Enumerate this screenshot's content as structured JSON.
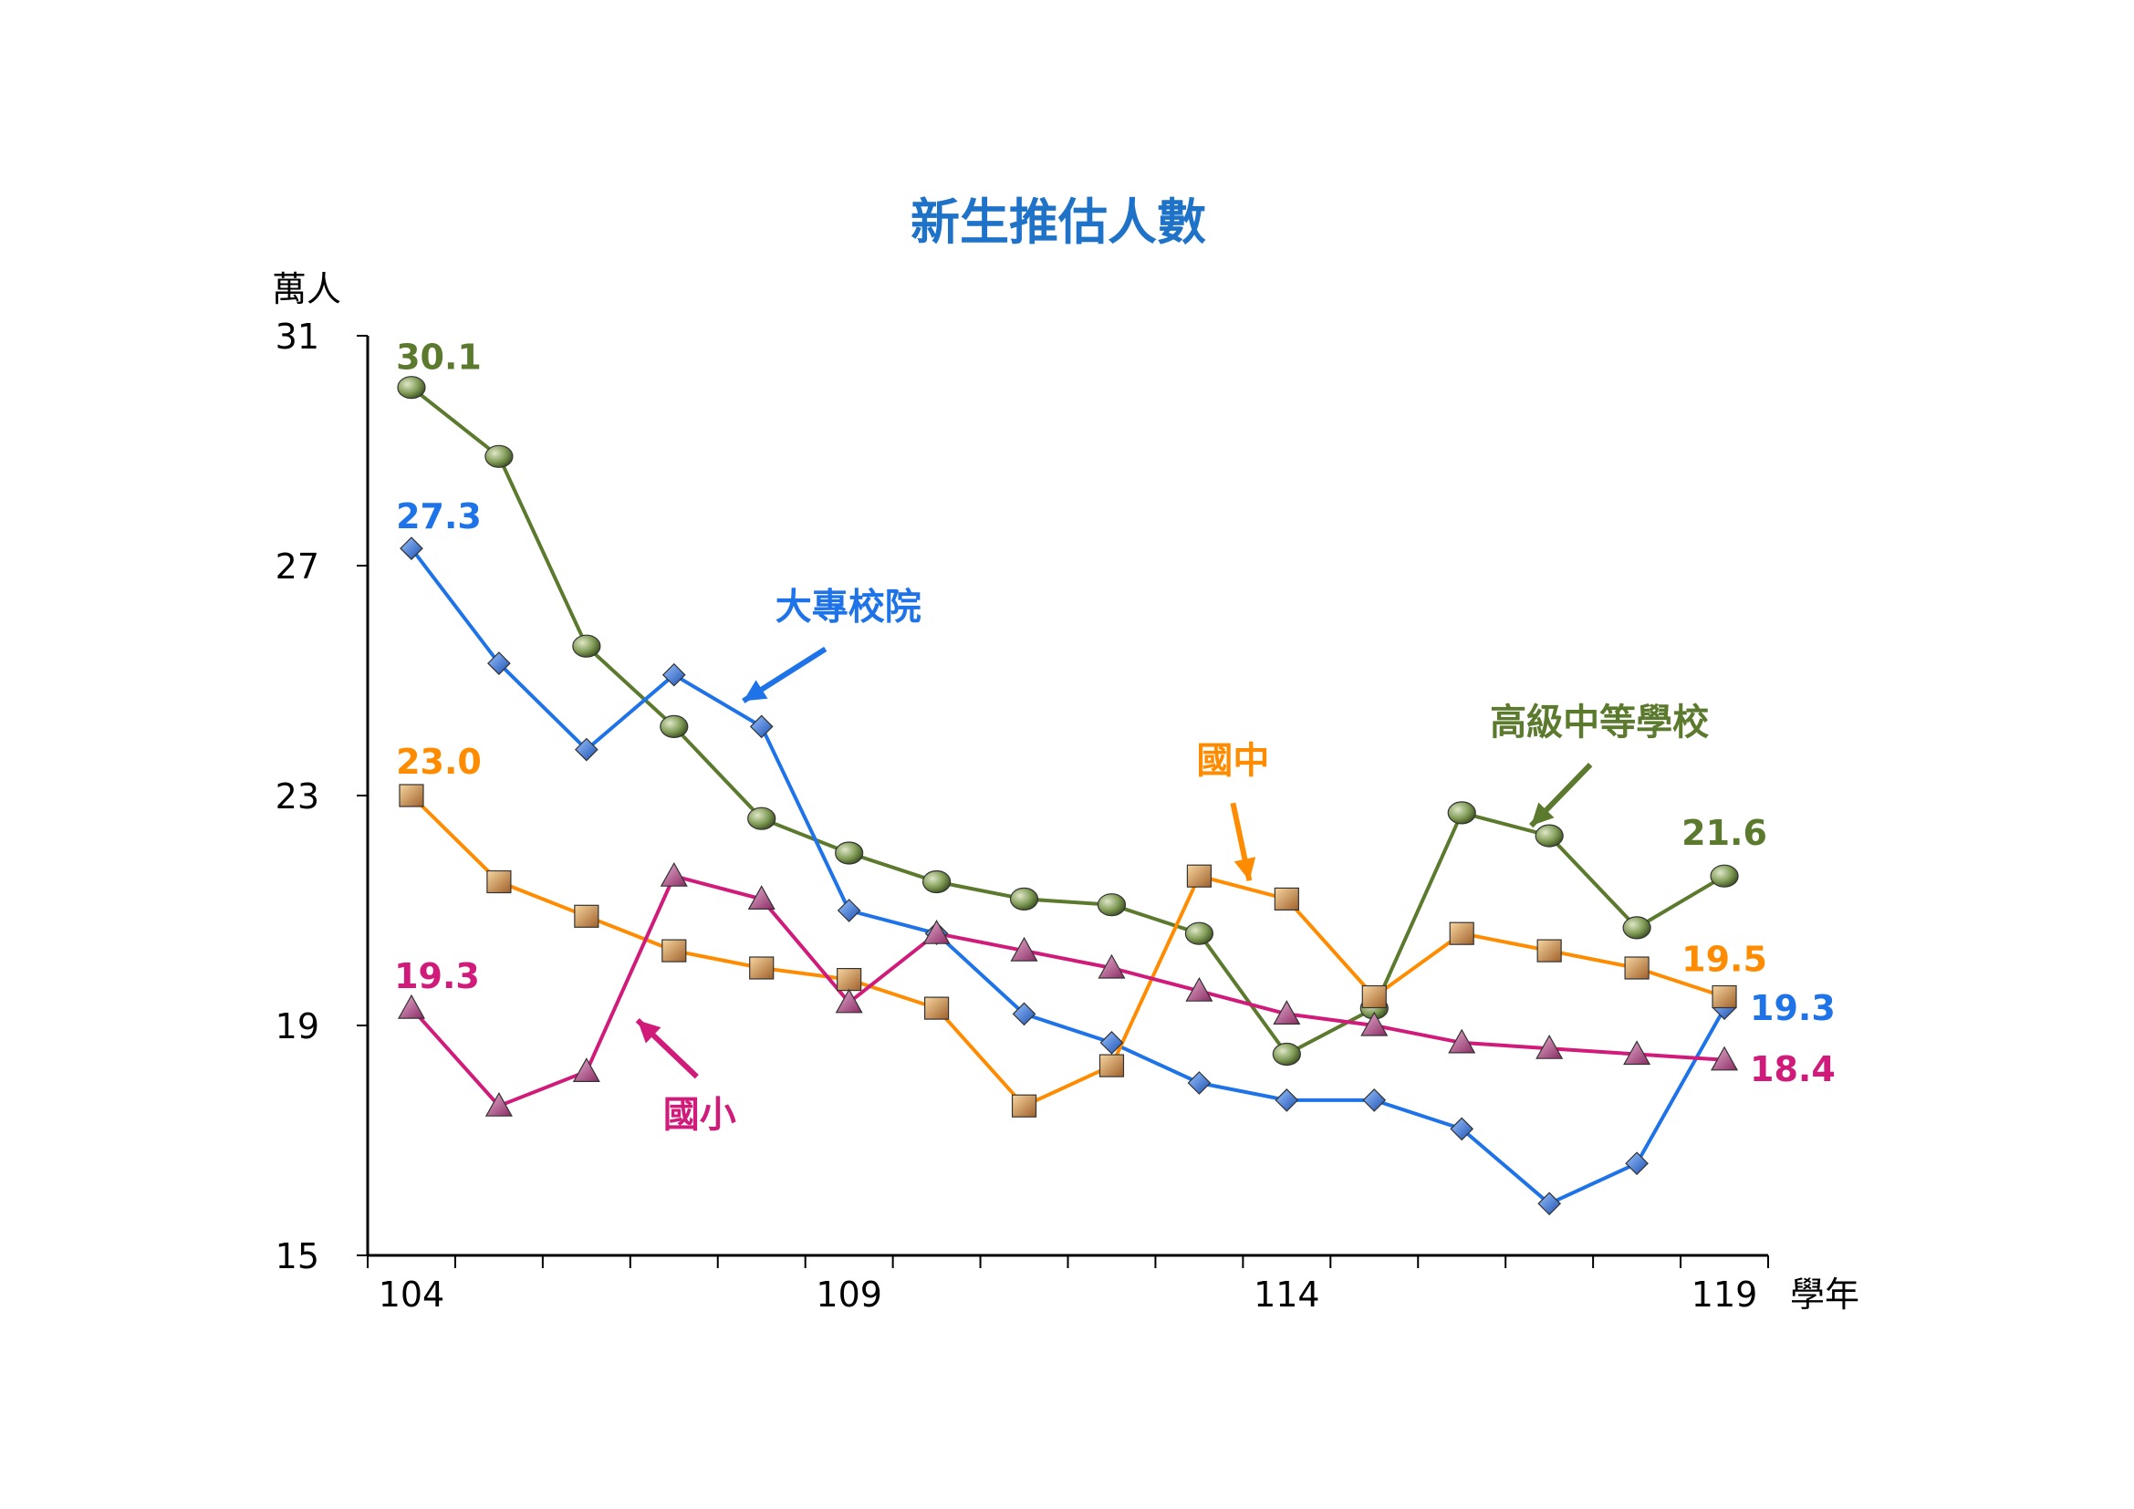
{
  "chart_data": {
    "type": "line",
    "title": "新生推估人數",
    "ylabel": "萬人",
    "xlabel": "學年",
    "ylim": [
      15,
      31
    ],
    "yticks": [
      "31",
      "27",
      "23",
      "19",
      "15"
    ],
    "xlim": [
      104,
      119
    ],
    "xtick_labels": [
      "104",
      "109",
      "114",
      "119"
    ],
    "x": [
      104,
      105,
      106,
      107,
      108,
      109,
      110,
      111,
      112,
      113,
      114,
      115,
      116,
      117,
      118,
      119
    ],
    "series": [
      {
        "name": "高級中等學校",
        "color": "#5b7a2e",
        "marker": "circle",
        "values": [
          30.1,
          28.9,
          25.6,
          24.2,
          22.6,
          22.0,
          21.5,
          21.2,
          21.1,
          20.6,
          18.5,
          19.3,
          22.7,
          22.3,
          20.7,
          21.6
        ],
        "annot": [
          "30.1",
          "21.6"
        ]
      },
      {
        "name": "大專校院",
        "color": "#1e73e8",
        "marker": "diamond",
        "values": [
          27.3,
          25.3,
          23.8,
          25.1,
          24.2,
          21.0,
          20.6,
          19.2,
          18.7,
          18.0,
          17.7,
          17.7,
          17.2,
          15.9,
          16.6,
          19.3
        ],
        "annot": [
          "27.3",
          "19.3"
        ]
      },
      {
        "name": "國中",
        "color": "#ff8c00",
        "marker": "square",
        "values": [
          23.0,
          21.5,
          20.9,
          20.3,
          20.0,
          19.8,
          19.3,
          17.6,
          18.3,
          21.6,
          21.2,
          19.5,
          20.6,
          20.3,
          20.0,
          19.5
        ],
        "annot": [
          "23.0",
          "19.5"
        ]
      },
      {
        "name": "國小",
        "color": "#d01b7a",
        "marker": "triangle",
        "values": [
          19.3,
          17.6,
          18.2,
          21.6,
          21.2,
          19.4,
          20.6,
          20.3,
          20.0,
          19.6,
          19.2,
          19.0,
          18.7,
          18.6,
          18.5,
          18.4
        ],
        "annot": [
          "19.3",
          "18.4"
        ]
      }
    ],
    "grid": false,
    "legend": "inline labels with arrows"
  }
}
